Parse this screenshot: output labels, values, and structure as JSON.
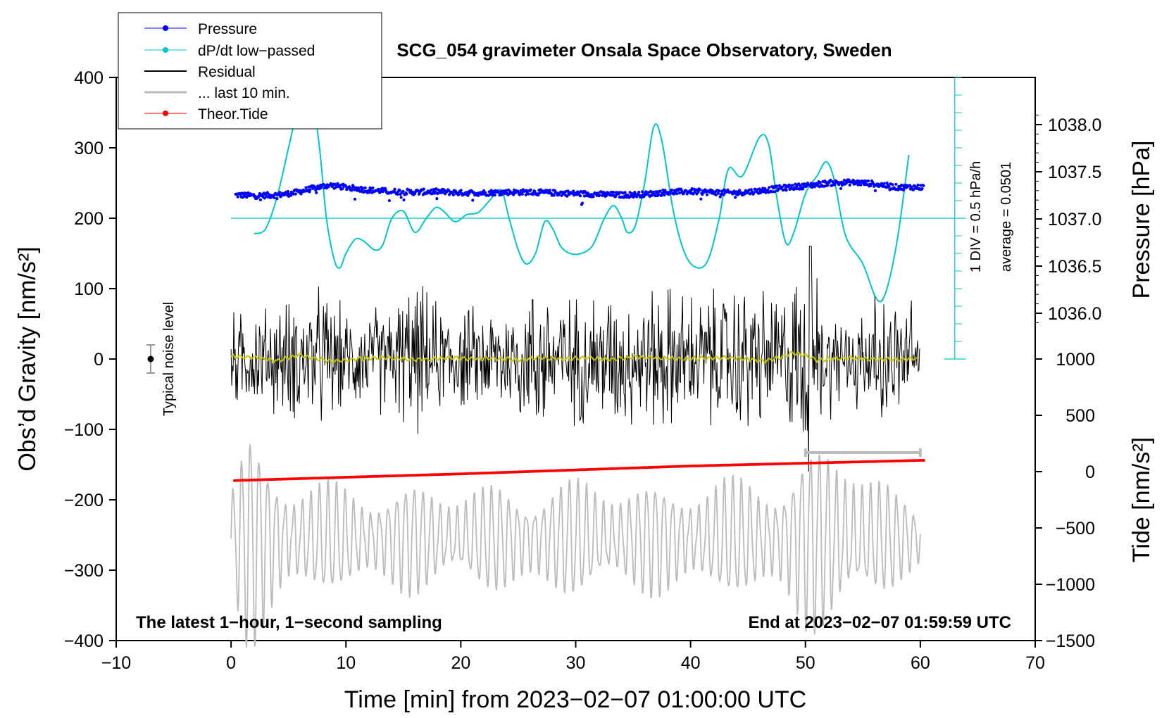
{
  "chart_data": {
    "type": "line",
    "title": "SCG_054 gravimeter Onsala Space Observatory, Sweden",
    "xlabel": "Time [min] from 2023−02−07 01:00:00 UTC",
    "ylabel_left": "Obs’d Gravity [nm/s²]",
    "ylabel_right_pressure": "Pressure [hPa]",
    "ylabel_right_tide": "Tide [nm/s²]",
    "xlim": [
      -10,
      70
    ],
    "ylim_gravity": [
      -400,
      400
    ],
    "x_ticks": [
      -10,
      0,
      10,
      20,
      30,
      40,
      50,
      60,
      70
    ],
    "x_tick_labels": [
      "−10",
      "0",
      "10",
      "20",
      "30",
      "40",
      "50",
      "60",
      "70"
    ],
    "gravity_ticks": [
      -400,
      -300,
      -200,
      -100,
      0,
      100,
      200,
      300,
      400
    ],
    "gravity_tick_labels": [
      "−400",
      "−300",
      "−200",
      "−100",
      "0",
      "100",
      "200",
      "300",
      "400"
    ],
    "pressure_ticks": [
      1036.0,
      1036.5,
      1037.0,
      1037.5,
      1038.0
    ],
    "pressure_tick_labels": [
      "1036.0",
      "1036.5",
      "1037.0",
      "1037.5",
      "1038.0"
    ],
    "pressure_gravity_map": [
      [
        1036.0,
        65
      ],
      [
        1038.0,
        333
      ]
    ],
    "tide_ticks": [
      -1500,
      -1000,
      -500,
      0,
      500,
      1000
    ],
    "tide_tick_labels": [
      "−1500",
      "−1000",
      "−500",
      "0",
      "500",
      "1000"
    ],
    "tide_gravity_map": [
      [
        -1500,
        -400
      ],
      [
        1000,
        0
      ]
    ],
    "legend": [
      {
        "label": "Pressure",
        "color": "#0000ff",
        "marker": "dot"
      },
      {
        "label": "dP/dt low−passed",
        "color": "#00c8c8",
        "marker": "dot"
      },
      {
        "label": "Residual",
        "color": "#000000",
        "marker": "line"
      },
      {
        "label": "... last 10 min.",
        "color": "#bbbbbb",
        "marker": "line"
      },
      {
        "label": "Theor.Tide",
        "color": "#ff0000",
        "marker": "dot"
      }
    ],
    "footer_left": "The latest 1−hour, 1−second sampling",
    "footer_right": "End at 2023−02−07 01:59:59 UTC",
    "noise_label": "Typical noise level",
    "noise_bar": {
      "x": -7,
      "center": 0,
      "half_range": 20
    },
    "dpdt_scale_label": "1 DIV = 0.5 hPa/h",
    "dpdt_average_label": "average = 0.0501",
    "dpdt_scale_axis": {
      "x": 63,
      "top": 400,
      "bottom": 0,
      "zero_level": 200
    },
    "last10_bar": {
      "x_start": 50,
      "x_end": 60,
      "y": -133
    },
    "series": [
      {
        "name": "Pressure",
        "units": "gravity-axis",
        "color": "#0000ff",
        "points": [
          [
            0.5,
            233
          ],
          [
            2,
            232
          ],
          [
            4,
            233
          ],
          [
            5.5,
            236
          ],
          [
            7,
            242
          ],
          [
            8.5,
            247
          ],
          [
            10,
            244
          ],
          [
            12,
            240
          ],
          [
            14,
            238
          ],
          [
            16,
            237
          ],
          [
            18,
            238
          ],
          [
            20,
            236
          ],
          [
            22,
            236
          ],
          [
            24,
            237
          ],
          [
            26,
            237
          ],
          [
            28,
            236
          ],
          [
            30,
            235
          ],
          [
            32,
            234
          ],
          [
            34,
            233
          ],
          [
            36,
            234
          ],
          [
            38,
            237
          ],
          [
            40,
            238
          ],
          [
            42,
            237
          ],
          [
            44,
            236
          ],
          [
            46,
            239
          ],
          [
            48,
            243
          ],
          [
            50,
            246
          ],
          [
            52,
            250
          ],
          [
            54,
            251
          ],
          [
            56,
            249
          ],
          [
            58,
            244
          ],
          [
            60,
            244
          ]
        ]
      },
      {
        "name": "dP/dt low−passed",
        "units": "gravity-axis",
        "color": "#00c8c8",
        "points": [
          [
            2,
            178
          ],
          [
            3,
            185
          ],
          [
            4,
            230
          ],
          [
            5,
            300
          ],
          [
            6,
            370
          ],
          [
            6.5,
            395
          ],
          [
            7,
            380
          ],
          [
            7.7,
            300
          ],
          [
            8.3,
            200
          ],
          [
            9,
            140
          ],
          [
            9.5,
            130
          ],
          [
            10,
            150
          ],
          [
            10.8,
            170
          ],
          [
            11.5,
            168
          ],
          [
            12.5,
            155
          ],
          [
            13.2,
            162
          ],
          [
            14,
            200
          ],
          [
            15,
            210
          ],
          [
            16,
            180
          ],
          [
            17,
            200
          ],
          [
            17.8,
            215
          ],
          [
            18.5,
            210
          ],
          [
            19.5,
            195
          ],
          [
            20.5,
            205
          ],
          [
            21.5,
            208
          ],
          [
            22.5,
            225
          ],
          [
            23.5,
            240
          ],
          [
            24.2,
            200
          ],
          [
            25,
            155
          ],
          [
            25.7,
            135
          ],
          [
            26.5,
            150
          ],
          [
            27.3,
            195
          ],
          [
            28,
            185
          ],
          [
            28.7,
            160
          ],
          [
            29.5,
            150
          ],
          [
            30.5,
            150
          ],
          [
            31.5,
            162
          ],
          [
            32.5,
            200
          ],
          [
            33.3,
            218
          ],
          [
            34,
            200
          ],
          [
            34.5,
            180
          ],
          [
            35.2,
            190
          ],
          [
            36,
            250
          ],
          [
            36.8,
            330
          ],
          [
            37.5,
            310
          ],
          [
            38.5,
            210
          ],
          [
            39.5,
            150
          ],
          [
            40.5,
            130
          ],
          [
            41.5,
            140
          ],
          [
            42.5,
            200
          ],
          [
            43.3,
            270
          ],
          [
            44.5,
            260
          ],
          [
            46,
            315
          ],
          [
            46.8,
            305
          ],
          [
            47.5,
            230
          ],
          [
            48.3,
            165
          ],
          [
            49,
            180
          ],
          [
            50,
            235
          ],
          [
            51,
            260
          ],
          [
            51.8,
            280
          ],
          [
            52.5,
            255
          ],
          [
            53.5,
            175
          ],
          [
            55,
            135
          ],
          [
            56.2,
            85
          ],
          [
            57,
            95
          ],
          [
            58,
            170
          ],
          [
            59,
            290
          ]
        ]
      },
      {
        "name": "Residual",
        "units": "gravity-axis",
        "color": "#000000",
        "range": [
          0,
          60
        ],
        "envelope": [
          [
            0,
            80
          ],
          [
            4,
            95
          ],
          [
            5.5,
            105
          ],
          [
            8,
            120
          ],
          [
            10,
            80
          ],
          [
            14,
            100
          ],
          [
            16,
            130
          ],
          [
            18,
            95
          ],
          [
            22,
            85
          ],
          [
            28,
            140
          ],
          [
            29,
            105
          ],
          [
            33,
            120
          ],
          [
            35,
            110
          ],
          [
            38,
            130
          ],
          [
            40,
            110
          ],
          [
            45,
            135
          ],
          [
            47,
            110
          ],
          [
            50.4,
            165
          ],
          [
            52,
            90
          ],
          [
            55,
            95
          ],
          [
            58,
            105
          ],
          [
            60,
            100
          ]
        ]
      },
      {
        "name": "Residual (smoothed)",
        "units": "gravity-axis",
        "color": "#c8c800",
        "points": [
          [
            0,
            4
          ],
          [
            1,
            3
          ],
          [
            2,
            2
          ],
          [
            3,
            0
          ],
          [
            4,
            -3
          ],
          [
            5,
            2
          ],
          [
            6,
            6
          ],
          [
            7,
            2
          ],
          [
            8,
            -1
          ],
          [
            9,
            -3
          ],
          [
            11,
            0
          ],
          [
            13,
            2
          ],
          [
            15,
            0
          ],
          [
            17,
            -1
          ],
          [
            19,
            2
          ],
          [
            21,
            0
          ],
          [
            23,
            1
          ],
          [
            25,
            -1
          ],
          [
            27,
            2
          ],
          [
            29,
            0
          ],
          [
            31,
            2
          ],
          [
            33,
            -1
          ],
          [
            35,
            3
          ],
          [
            37,
            2
          ],
          [
            39,
            0
          ],
          [
            41,
            1
          ],
          [
            43,
            2
          ],
          [
            45,
            0
          ],
          [
            46.5,
            -3
          ],
          [
            48,
            3
          ],
          [
            49,
            9
          ],
          [
            50,
            5
          ],
          [
            51,
            -2
          ],
          [
            52,
            0
          ],
          [
            54,
            1
          ],
          [
            56,
            0
          ],
          [
            58,
            -1
          ],
          [
            60,
            1
          ]
        ]
      },
      {
        "name": "... last 10 min.",
        "units": "gravity-axis",
        "color": "#bbbbbb",
        "range": [
          0,
          60
        ],
        "envelope": [
          [
            0,
            80
          ],
          [
            1.5,
            150
          ],
          [
            3,
            120
          ],
          [
            5,
            90
          ],
          [
            8,
            75
          ],
          [
            12,
            70
          ],
          [
            16,
            75
          ],
          [
            20,
            70
          ],
          [
            24,
            72
          ],
          [
            28,
            78
          ],
          [
            32,
            80
          ],
          [
            36,
            75
          ],
          [
            40,
            78
          ],
          [
            44,
            80
          ],
          [
            48,
            90
          ],
          [
            50,
            120
          ],
          [
            52,
            130
          ],
          [
            54,
            125
          ],
          [
            56,
            90
          ],
          [
            58,
            60
          ],
          [
            60,
            45
          ]
        ]
      },
      {
        "name": "Theor.Tide",
        "units": "tide",
        "color": "#ff0000",
        "points": [
          [
            0,
            -80
          ],
          [
            20,
            -20
          ],
          [
            40,
            50
          ],
          [
            60,
            100
          ]
        ]
      }
    ]
  }
}
